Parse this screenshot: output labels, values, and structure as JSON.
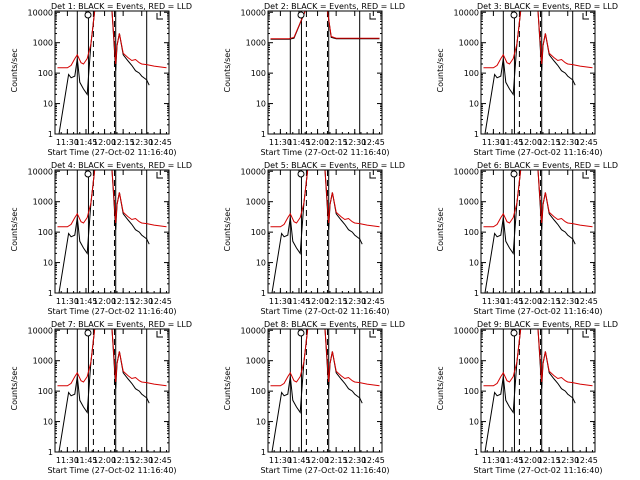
{
  "chart_data": {
    "type": "line",
    "grid": false,
    "y_scale": "log",
    "ylim": [
      1,
      11000
    ],
    "xlim": [
      "11:20",
      "12:52"
    ],
    "ylabel": "Counts/sec",
    "xlabel": "Start Time (27-Oct-02 11:16:40)",
    "x_ticks": [
      "11:30",
      "11:45",
      "12:00",
      "12:15",
      "12:30",
      "12:45"
    ],
    "y_ticks": [
      "1",
      "10",
      "100",
      "1000",
      "10000"
    ],
    "colors": {
      "events": "#000000",
      "lld": "#d40000"
    },
    "legend_text": "BLACK = Events, RED = LLD",
    "marker_times_solid": [
      "11:38",
      "11:47",
      "12:09",
      "12:34"
    ],
    "marker_times_dashed": [
      "11:51",
      "12:08"
    ],
    "detector_titles": [
      "Det 1: BLACK = Events, RED = LLD",
      "Det 2: BLACK = Events, RED = LLD",
      "Det 3: BLACK = Events, RED = LLD",
      "Det 4: BLACK = Events, RED = LLD",
      "Det 5: BLACK = Events, RED = LLD",
      "Det 6: BLACK = Events, RED = LLD",
      "Det 7: BLACK = Events, RED = LLD",
      "Det 8: BLACK = Events, RED = LLD",
      "Det 9: BLACK = Events, RED = LLD"
    ],
    "events_typical": {
      "x": [
        "11:22",
        "11:31",
        "11:33",
        "11:36",
        "11:38",
        "11:40",
        "11:43",
        "11:46",
        "11:49",
        "11:52",
        "11:56",
        "12:01",
        "12:06",
        "12:09",
        "12:10",
        "12:12",
        "12:15",
        "12:19",
        "12:22",
        "12:25",
        "12:28",
        "12:30",
        "12:34",
        "12:36"
      ],
      "y": [
        0,
        90,
        70,
        80,
        300,
        50,
        30,
        20,
        900,
        11000,
        11000,
        11000,
        11000,
        120,
        800,
        2000,
        400,
        250,
        180,
        120,
        100,
        80,
        60,
        40
      ]
    },
    "lld_typical": {
      "x": [
        "11:22",
        "11:30",
        "11:33",
        "11:36",
        "11:38",
        "11:41",
        "11:43",
        "11:46",
        "11:49",
        "11:52",
        "11:56",
        "12:01",
        "12:06",
        "12:09",
        "12:10",
        "12:12",
        "12:15",
        "12:19",
        "12:22",
        "12:25",
        "12:28",
        "12:30",
        "12:34",
        "12:40",
        "12:50"
      ],
      "y": [
        150,
        150,
        180,
        300,
        400,
        220,
        200,
        300,
        900,
        11000,
        11000,
        11000,
        11000,
        200,
        800,
        2000,
        450,
        320,
        260,
        280,
        220,
        200,
        190,
        170,
        150
      ]
    },
    "events_det2": {
      "x": [
        "11:22",
        "11:37",
        "11:41",
        "11:50",
        "12:00",
        "12:08",
        "12:11",
        "12:15",
        "12:30",
        "12:50"
      ],
      "y": [
        1300,
        1300,
        1400,
        11000,
        11000,
        11000,
        1500,
        1350,
        1350,
        1350
      ]
    },
    "lld_det2": {
      "x": [
        "11:22",
        "11:37",
        "11:41",
        "11:50",
        "12:00",
        "12:08",
        "12:11",
        "12:15",
        "12:30",
        "12:50"
      ],
      "y": [
        1350,
        1350,
        1500,
        11000,
        11000,
        11000,
        1600,
        1400,
        1400,
        1400
      ]
    }
  }
}
